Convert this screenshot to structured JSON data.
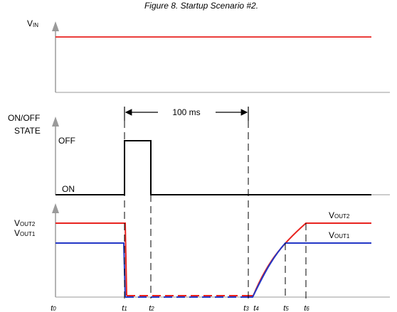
{
  "title": "Figure 8. Startup Scenario #2.",
  "panels": {
    "vin": {
      "label_main": "V",
      "label_sub": "IN"
    },
    "onoff": {
      "label_line1": "ON/OFF",
      "label_line2": "STATE",
      "off_label": "OFF",
      "on_label": "ON"
    },
    "vout": {
      "left_label_1": {
        "main": "V",
        "sub": "OUT2"
      },
      "left_label_2": {
        "main": "V",
        "sub": "OUT1"
      },
      "right_label_1": {
        "main": "V",
        "sub": "OUT2"
      },
      "right_label_2": {
        "main": "V",
        "sub": "OUT1"
      }
    }
  },
  "interval_label": "100 ms",
  "time_markers": [
    {
      "main": "t",
      "sub": "0"
    },
    {
      "main": "t",
      "sub": "1"
    },
    {
      "main": "t",
      "sub": "2"
    },
    {
      "main": "t",
      "sub": "3"
    },
    {
      "main": "t",
      "sub": "4"
    },
    {
      "main": "t",
      "sub": "5"
    },
    {
      "main": "t",
      "sub": "6"
    }
  ],
  "colors": {
    "vin_trace": "#e8231f",
    "vout2_trace": "#e8231f",
    "vout1_trace": "#2337c6",
    "axis": "#9a9a9a",
    "state_trace": "#000000"
  }
}
